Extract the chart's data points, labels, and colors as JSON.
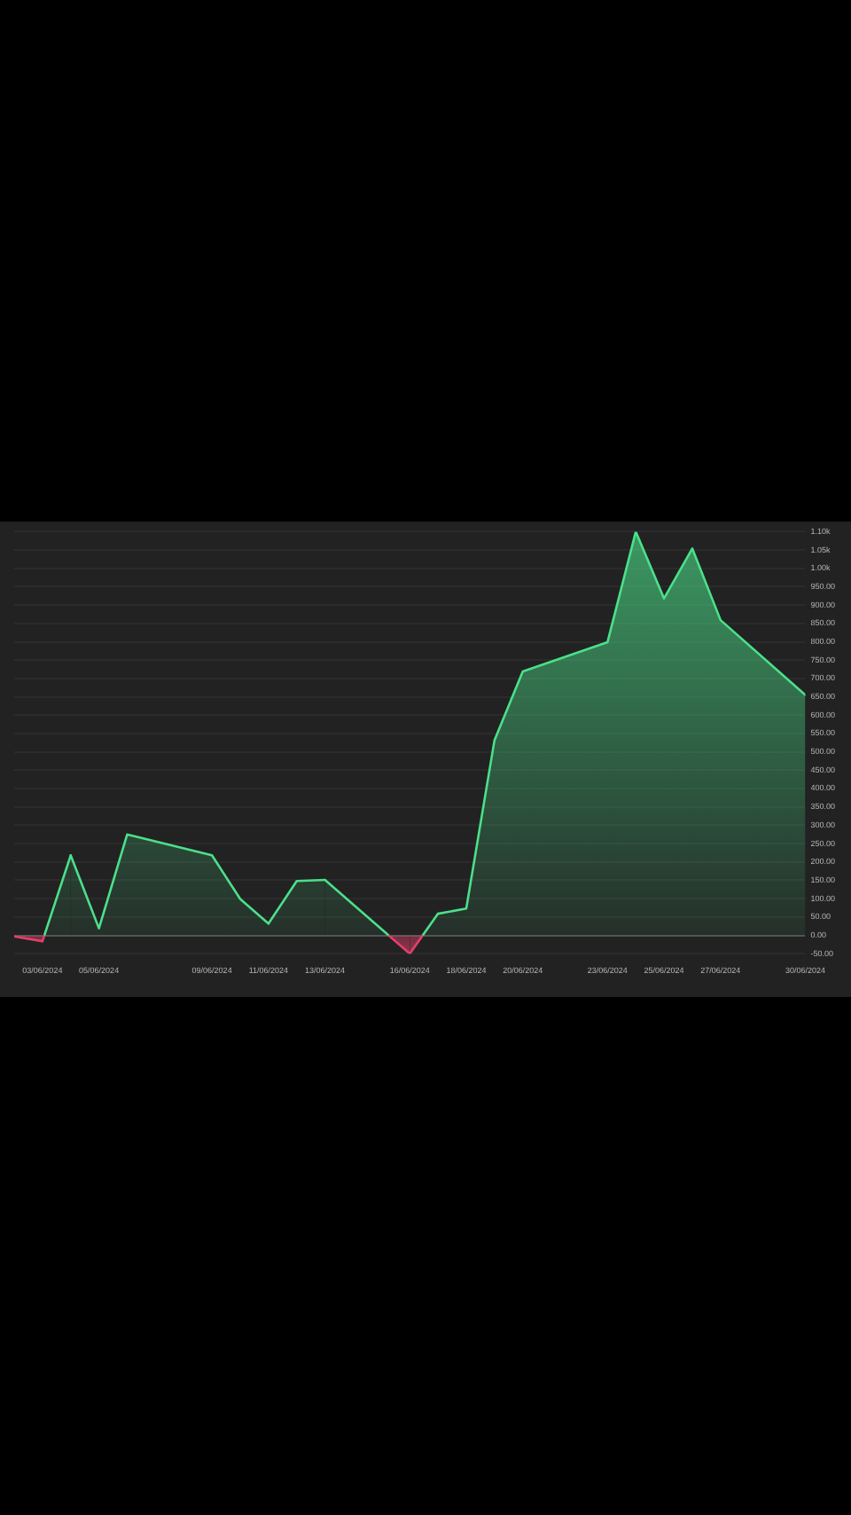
{
  "chart_data": {
    "type": "area",
    "x": [
      "2024-06-02",
      "2024-06-03",
      "2024-06-04",
      "2024-06-05",
      "2024-06-06",
      "2024-06-09",
      "2024-06-10",
      "2024-06-11",
      "2024-06-12",
      "2024-06-13",
      "2024-06-16",
      "2024-06-17",
      "2024-06-18",
      "2024-06-19",
      "2024-06-20",
      "2024-06-23",
      "2024-06-24",
      "2024-06-25",
      "2024-06-26",
      "2024-06-27",
      "2024-06-30"
    ],
    "series": [
      {
        "color": "#4be08a",
        "colors": [
          "#e2406a",
          "#e2406a",
          "#4be08a",
          "#4be08a",
          "#4be08a",
          "#4be08a",
          "#4be08a",
          "#4be08a",
          "#4be08a",
          "#4be08a",
          "#e2406a",
          "#4be08a",
          "#4be08a",
          "#4be08a",
          "#4be08a",
          "#4be08a",
          "#4be08a",
          "#4be08a",
          "#4be08a",
          "#4be08a",
          "#4be08a"
        ],
        "values": [
          -3,
          -16,
          218,
          19,
          275,
          218,
          99,
          32,
          148,
          151,
          -50,
          59,
          73,
          532,
          719,
          799,
          1100,
          918,
          1054,
          859,
          655
        ]
      }
    ],
    "xlim": [
      "2024-06-02",
      "2024-06-30"
    ],
    "xticks": [
      {
        "value": "2024-06-03",
        "label": "03/06/2024"
      },
      {
        "value": "2024-06-05",
        "label": "05/06/2024"
      },
      {
        "value": "2024-06-09",
        "label": "09/06/2024"
      },
      {
        "value": "2024-06-11",
        "label": "11/06/2024"
      },
      {
        "value": "2024-06-13",
        "label": "13/06/2024"
      },
      {
        "value": "2024-06-16",
        "label": "16/06/2024"
      },
      {
        "value": "2024-06-18",
        "label": "18/06/2024"
      },
      {
        "value": "2024-06-20",
        "label": "20/06/2024"
      },
      {
        "value": "2024-06-23",
        "label": "23/06/2024"
      },
      {
        "value": "2024-06-25",
        "label": "25/06/2024"
      },
      {
        "value": "2024-06-27",
        "label": "27/06/2024"
      },
      {
        "value": "2024-06-30",
        "label": "30/06/2024"
      }
    ],
    "ylim": [
      -50,
      1100
    ],
    "yticks": [
      {
        "value": -50,
        "label": "-50.00"
      },
      {
        "value": 0,
        "label": "0.00"
      },
      {
        "value": 50,
        "label": "50.00"
      },
      {
        "value": 100,
        "label": "100.00"
      },
      {
        "value": 150,
        "label": "150.00"
      },
      {
        "value": 200,
        "label": "200.00"
      },
      {
        "value": 250,
        "label": "250.00"
      },
      {
        "value": 300,
        "label": "300.00"
      },
      {
        "value": 350,
        "label": "350.00"
      },
      {
        "value": 400,
        "label": "400.00"
      },
      {
        "value": 450,
        "label": "450.00"
      },
      {
        "value": 500,
        "label": "500.00"
      },
      {
        "value": 550,
        "label": "550.00"
      },
      {
        "value": 600,
        "label": "600.00"
      },
      {
        "value": 650,
        "label": "650.00"
      },
      {
        "value": 700,
        "label": "700.00"
      },
      {
        "value": 750,
        "label": "750.00"
      },
      {
        "value": 800,
        "label": "800.00"
      },
      {
        "value": 850,
        "label": "850.00"
      },
      {
        "value": 900,
        "label": "900.00"
      },
      {
        "value": 950,
        "label": "950.00"
      },
      {
        "value": 1000,
        "label": "1.00k"
      },
      {
        "value": 1050,
        "label": "1.05k"
      },
      {
        "value": 1100,
        "label": "1.10k"
      }
    ],
    "grid": "y",
    "marker": "none",
    "line_style": "solid"
  }
}
